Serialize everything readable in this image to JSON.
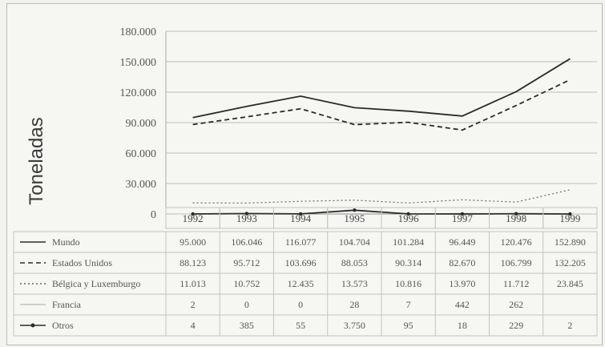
{
  "chart_data": {
    "type": "line",
    "ylabel": "Toneladas",
    "xlabel": "",
    "title": "",
    "ylim": [
      0,
      180000
    ],
    "y_ticks": [
      "180.000",
      "150.000",
      "120.000",
      "90.000",
      "60.000",
      "30.000",
      "0"
    ],
    "y_tick_values": [
      180000,
      150000,
      120000,
      90000,
      60000,
      30000,
      0
    ],
    "categories": [
      "1992",
      "1993",
      "1994",
      "1995",
      "1996",
      "1997",
      "1998",
      "1999"
    ],
    "grid": true,
    "legend": "table-below",
    "series": [
      {
        "name": "Mundo",
        "style": "solid",
        "color": "#2b2b2b",
        "values": [
          95000,
          106046,
          116077,
          104704,
          101284,
          96449,
          120476,
          152890
        ],
        "labels": [
          "95.000",
          "106.046",
          "116.077",
          "104.704",
          "101.284",
          "96.449",
          "120.476",
          "152.890"
        ]
      },
      {
        "name": "Estados Unidos",
        "style": "dashed",
        "color": "#2b2b2b",
        "values": [
          88123,
          95712,
          103696,
          88053,
          90314,
          82670,
          106799,
          132205
        ],
        "labels": [
          "88.123",
          "95.712",
          "103.696",
          "88.053",
          "90.314",
          "82.670",
          "106.799",
          "132.205"
        ]
      },
      {
        "name": "Bélgica y Luxemburgo",
        "style": "dotted",
        "color": "#6a6a6a",
        "values": [
          11013,
          10752,
          12435,
          13573,
          10816,
          13970,
          11712,
          23845
        ],
        "labels": [
          "11.013",
          "10.752",
          "12.435",
          "13.573",
          "10.816",
          "13.970",
          "11.712",
          "23.845"
        ]
      },
      {
        "name": "Francia",
        "style": "thin",
        "color": "#8a8a8a",
        "values": [
          2,
          0,
          0,
          28,
          7,
          442,
          262,
          null
        ],
        "labels": [
          "2",
          "0",
          "0",
          "28",
          "7",
          "442",
          "262",
          ""
        ]
      },
      {
        "name": "Otros",
        "style": "marker",
        "color": "#2b2b2b",
        "values": [
          4,
          385,
          55,
          3750,
          95,
          18,
          229,
          2
        ],
        "labels": [
          "4",
          "385",
          "55",
          "3.750",
          "95",
          "18",
          "229",
          "2"
        ]
      }
    ]
  }
}
